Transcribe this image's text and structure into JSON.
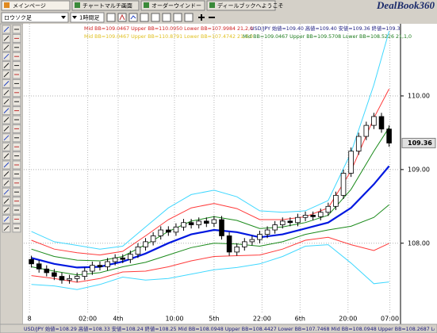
{
  "tabs": [
    "メインページ",
    "チャートマルチ画面",
    "オーダーウインドー",
    "ディールブックへようこそ"
  ],
  "logo": "DealBook360",
  "toolbar": {
    "chart_type": "ロウソク足",
    "timeframe": "1時間足"
  },
  "info_lines": [
    "Mid BB=109.0467 Upper BB=110.0950 Lower BB=107.9984 21,2,0",
    "USD/JPY 始値=109.40 高値=109.40 安値=109.36 終値=109.3",
    "Mid BB=109.0467 Upper BB=110.8791 Lower BB=107.4742 21,3,0",
    "Mid BB=109.0467 Upper BB=109.5708 Lower BB=108.5226 21,1,0"
  ],
  "status_bar": "USD/JPY 始値=108.29 高値=108.33 安値=108.24 終値=108.25 Mid BB=108.0948 Upper BB=108.4427 Lower BB=107.7468 Mid BB=108.0948 Upper BB=108.2687 Lo",
  "chart_data": {
    "type": "candlestick",
    "x": [
      0,
      1,
      2,
      3,
      4,
      5,
      6,
      7,
      8,
      9,
      10,
      11,
      12,
      13,
      14,
      15,
      16,
      17,
      18,
      19,
      20,
      21,
      22,
      23,
      24,
      25,
      26,
      27,
      28,
      29,
      30,
      31,
      32,
      33,
      34,
      35,
      36,
      37,
      38,
      39,
      40,
      41,
      42,
      43,
      44,
      45,
      46,
      47
    ],
    "open": [
      107.78,
      107.72,
      107.65,
      107.6,
      107.55,
      107.5,
      107.52,
      107.55,
      107.62,
      107.7,
      107.68,
      107.75,
      107.8,
      107.78,
      107.85,
      107.95,
      108.02,
      108.1,
      108.18,
      108.15,
      108.22,
      108.28,
      108.25,
      108.3,
      108.27,
      108.32,
      108.1,
      107.88,
      107.95,
      108.02,
      108.05,
      108.12,
      108.18,
      108.25,
      108.3,
      108.28,
      108.35,
      108.38,
      108.36,
      108.42,
      108.5,
      108.65,
      108.95,
      109.25,
      109.45,
      109.6,
      109.72,
      109.55
    ],
    "high": [
      107.83,
      107.77,
      107.7,
      107.65,
      107.6,
      107.57,
      107.6,
      107.67,
      107.75,
      107.75,
      107.8,
      107.85,
      107.85,
      107.9,
      108.0,
      108.07,
      108.15,
      108.23,
      108.23,
      108.27,
      108.33,
      108.33,
      108.35,
      108.35,
      108.37,
      108.37,
      108.15,
      108.0,
      108.07,
      108.1,
      108.17,
      108.23,
      108.3,
      108.35,
      108.35,
      108.4,
      108.43,
      108.43,
      108.47,
      108.55,
      108.7,
      109.0,
      109.3,
      109.5,
      109.65,
      109.77,
      109.77,
      109.6
    ],
    "low": [
      107.67,
      107.6,
      107.55,
      107.5,
      107.45,
      107.45,
      107.47,
      107.5,
      107.57,
      107.63,
      107.63,
      107.7,
      107.73,
      107.73,
      107.8,
      107.9,
      107.97,
      108.05,
      108.1,
      108.1,
      108.17,
      108.2,
      108.2,
      108.22,
      108.22,
      108.05,
      107.83,
      107.83,
      107.9,
      107.97,
      108.0,
      108.07,
      108.13,
      108.2,
      108.23,
      108.23,
      108.3,
      108.31,
      108.31,
      108.37,
      108.45,
      108.6,
      108.9,
      109.2,
      109.4,
      109.55,
      109.5,
      109.31
    ],
    "close": [
      107.72,
      107.65,
      107.6,
      107.55,
      107.5,
      107.52,
      107.55,
      107.62,
      107.7,
      107.68,
      107.75,
      107.8,
      107.78,
      107.85,
      107.95,
      108.02,
      108.1,
      108.18,
      108.15,
      108.22,
      108.28,
      108.25,
      108.3,
      108.27,
      108.32,
      108.1,
      107.88,
      107.95,
      108.02,
      108.05,
      108.12,
      108.18,
      108.25,
      108.3,
      108.28,
      108.35,
      108.38,
      108.36,
      108.42,
      108.5,
      108.65,
      108.95,
      109.25,
      109.45,
      109.6,
      109.72,
      109.55,
      109.36
    ],
    "band_x": [
      0,
      3,
      6,
      9,
      12,
      15,
      18,
      21,
      24,
      27,
      30,
      33,
      36,
      39,
      42,
      45,
      47
    ],
    "bands": [
      {
        "color": "#40d8ff",
        "width": 1,
        "values": [
          108.16,
          108.02,
          107.97,
          107.92,
          107.96,
          108.22,
          108.48,
          108.66,
          108.72,
          108.63,
          108.44,
          108.42,
          108.44,
          108.58,
          109.23,
          110.15,
          110.8791
        ]
      },
      {
        "color": "#40d8ff",
        "width": 1,
        "values": [
          107.44,
          107.42,
          107.37,
          107.44,
          107.54,
          107.5,
          107.52,
          107.58,
          107.64,
          107.67,
          107.72,
          107.82,
          107.96,
          107.98,
          107.73,
          107.45,
          107.4742
        ]
      },
      {
        "color": "#ff3a3a",
        "width": 1,
        "values": [
          108.04,
          107.92,
          107.87,
          107.84,
          107.89,
          108.1,
          108.32,
          108.48,
          108.54,
          108.47,
          108.32,
          108.32,
          108.36,
          108.48,
          108.98,
          109.7,
          110.095
        ]
      },
      {
        "color": "#ff3a3a",
        "width": 1,
        "values": [
          107.56,
          107.52,
          107.47,
          107.52,
          107.61,
          107.62,
          107.68,
          107.76,
          107.82,
          107.83,
          107.84,
          107.92,
          108.04,
          108.08,
          107.98,
          107.9,
          107.9984
        ]
      },
      {
        "color": "#1a8a1a",
        "width": 1,
        "values": [
          107.92,
          107.82,
          107.77,
          107.76,
          107.82,
          107.98,
          108.16,
          108.3,
          108.36,
          108.31,
          108.2,
          108.22,
          108.28,
          108.38,
          108.73,
          109.25,
          109.5708
        ]
      },
      {
        "color": "#1a8a1a",
        "width": 1,
        "values": [
          107.68,
          107.62,
          107.57,
          107.6,
          107.68,
          107.74,
          107.84,
          107.94,
          108.0,
          107.99,
          107.96,
          108.02,
          108.12,
          108.18,
          108.23,
          108.35,
          108.5226
        ]
      },
      {
        "color": "#0018e0",
        "width": 2.2,
        "values": [
          107.8,
          107.72,
          107.67,
          107.68,
          107.75,
          107.86,
          108.0,
          108.12,
          108.18,
          108.15,
          108.08,
          108.12,
          108.2,
          108.28,
          108.48,
          108.8,
          109.0467
        ]
      }
    ],
    "up_color": "#ffffff",
    "down_color": "#000000",
    "xlim": [
      -1,
      48.5
    ],
    "xticks": [
      {
        "value": -0.25,
        "label": "8"
      },
      {
        "value": 7.4,
        "label": "02:00"
      },
      {
        "value": 11.4,
        "label": "4th"
      },
      {
        "value": 18.8,
        "label": "10:00"
      },
      {
        "value": 24,
        "label": "5th"
      },
      {
        "value": 30.3,
        "label": "22:00"
      },
      {
        "value": 35.3,
        "label": "6th"
      },
      {
        "value": 41.6,
        "label": "20:00"
      },
      {
        "value": 47.1,
        "label": "07:00"
      }
    ],
    "ylim": [
      107.05,
      110.85
    ],
    "yticks": [
      {
        "value": 108,
        "label": "108.00"
      },
      {
        "value": 109,
        "label": "109.00"
      },
      {
        "value": 110,
        "label": "110.00"
      }
    ],
    "last_price": 109.36,
    "grid": true
  }
}
